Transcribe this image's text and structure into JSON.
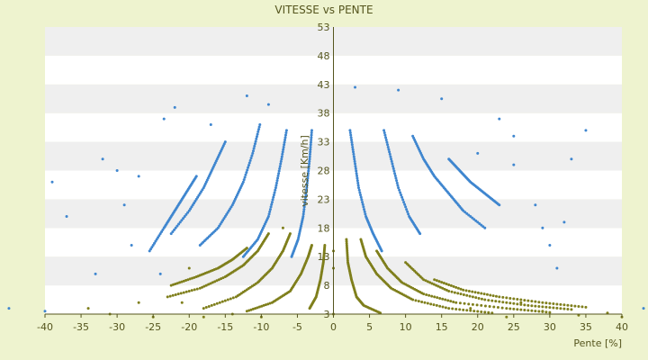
{
  "chart_data": {
    "type": "scatter",
    "title": "VITESSE vs PENTE",
    "xlabel": "Pente [%]",
    "ylabel": "vitesse [Km/h]",
    "xlim": [
      -40,
      40
    ],
    "ylim": [
      3,
      53
    ],
    "x_ticks": [
      "-40",
      "-35",
      "-30",
      "-25",
      "-20",
      "-15",
      "-10",
      "-5",
      "0",
      "5",
      "10",
      "15",
      "20",
      "25",
      "30",
      "35",
      "40"
    ],
    "y_ticks": [
      "53",
      "48",
      "43",
      "38",
      "33",
      "28",
      "23",
      "18",
      "13",
      "8",
      "3"
    ],
    "grid": "horizontal bands",
    "legend": "none",
    "colors": {
      "blue_series": "#3f86cf",
      "olive_series": "#7f7f1c",
      "background": "#eef3cf",
      "band": "#efefef"
    },
    "series": [
      {
        "color": "blue",
        "curves": [
          {
            "x": [
              -3,
              -3.3,
              -3.7,
              -4.2,
              -4.9,
              -5.8
            ],
            "y": [
              35,
              30,
              25,
              20,
              16,
              13
            ]
          },
          {
            "x": [
              -6.5,
              -7.2,
              -8,
              -9,
              -10.5,
              -12.5
            ],
            "y": [
              35,
              30,
              25,
              20,
              16,
              13
            ]
          },
          {
            "x": [
              -10.2,
              -11.2,
              -12.5,
              -14,
              -16,
              -18.5
            ],
            "y": [
              36,
              31,
              26,
              22,
              18,
              15
            ]
          },
          {
            "x": [
              -15,
              -16.5,
              -18,
              -20,
              -22.5
            ],
            "y": [
              33,
              29,
              25,
              21,
              17
            ]
          },
          {
            "x": [
              -19,
              -20.5,
              -22,
              -23.5,
              -25.5
            ],
            "y": [
              27,
              24,
              21,
              18,
              14
            ]
          },
          {
            "x": [
              2.3,
              2.9,
              3.5,
              4.5,
              5.5,
              6.7
            ],
            "y": [
              35,
              30,
              25,
              20,
              17,
              14
            ]
          },
          {
            "x": [
              7,
              8,
              9,
              10.5,
              12
            ],
            "y": [
              35,
              30,
              25,
              20,
              17
            ]
          },
          {
            "x": [
              11,
              12.5,
              14,
              16,
              18,
              21
            ],
            "y": [
              34,
              30,
              27,
              24,
              21,
              18
            ]
          },
          {
            "x": [
              16,
              17.5,
              19,
              21,
              23
            ],
            "y": [
              30,
              28,
              26,
              24,
              22
            ]
          }
        ],
        "scatter": [
          {
            "x": -37,
            "y": 20
          },
          {
            "x": -39,
            "y": 26
          },
          {
            "x": -32,
            "y": 30
          },
          {
            "x": -30,
            "y": 28
          },
          {
            "x": -29,
            "y": 22
          },
          {
            "x": -27,
            "y": 27
          },
          {
            "x": -23.5,
            "y": 37
          },
          {
            "x": -22,
            "y": 39
          },
          {
            "x": -17,
            "y": 36
          },
          {
            "x": -12,
            "y": 41
          },
          {
            "x": -9,
            "y": 39.5
          },
          {
            "x": -28,
            "y": 15
          },
          {
            "x": -24,
            "y": 10
          },
          {
            "x": -33,
            "y": 10
          },
          {
            "x": -40,
            "y": 3.5
          },
          {
            "x": -45,
            "y": 4
          },
          {
            "x": 3,
            "y": 42.5
          },
          {
            "x": 9,
            "y": 42
          },
          {
            "x": 15,
            "y": 40.5
          },
          {
            "x": 20,
            "y": 31
          },
          {
            "x": 23,
            "y": 37
          },
          {
            "x": 25,
            "y": 34
          },
          {
            "x": 25,
            "y": 29
          },
          {
            "x": 28,
            "y": 22
          },
          {
            "x": 29,
            "y": 18
          },
          {
            "x": 32,
            "y": 19
          },
          {
            "x": 33,
            "y": 30
          },
          {
            "x": 35,
            "y": 35
          },
          {
            "x": 30,
            "y": 15
          },
          {
            "x": 31,
            "y": 11
          },
          {
            "x": 43,
            "y": 4
          }
        ]
      },
      {
        "color": "olive",
        "curves": [
          {
            "x": [
              -1.2,
              -1.4,
              -1.8,
              -2.4,
              -3.3
            ],
            "y": [
              15,
              12,
              9,
              6,
              4
            ]
          },
          {
            "x": [
              -3,
              -3.5,
              -4.5,
              -6,
              -8.5,
              -12
            ],
            "y": [
              15,
              13,
              10,
              7,
              5,
              3.5
            ]
          },
          {
            "x": [
              -6,
              -7,
              -8.5,
              -10.5,
              -13.5,
              -18
            ],
            "y": [
              17,
              14,
              11,
              8.5,
              6,
              4
            ]
          },
          {
            "x": [
              -9,
              -10.5,
              -12.5,
              -15,
              -18.5,
              -23
            ],
            "y": [
              17,
              14,
              11.5,
              9.5,
              7.5,
              6
            ]
          },
          {
            "x": [
              -12,
              -14,
              -16,
              -19,
              -22.5
            ],
            "y": [
              14.5,
              12.5,
              11,
              9.5,
              8
            ]
          },
          {
            "x": [
              1.8,
              2,
              2.5,
              3.2,
              4.2,
              6.5
            ],
            "y": [
              16,
              12,
              9,
              6,
              4.5,
              3.2
            ]
          },
          {
            "x": [
              3.8,
              4.5,
              6,
              8,
              11,
              16,
              22
            ],
            "y": [
              16,
              13,
              10,
              7.5,
              5.5,
              4,
              3.2
            ]
          },
          {
            "x": [
              6,
              7.5,
              9.5,
              12.5,
              17,
              24,
              30
            ],
            "y": [
              14,
              11,
              8.5,
              6.5,
              5,
              4,
              3.3
            ]
          },
          {
            "x": [
              10,
              12.5,
              16,
              21,
              27,
              33
            ],
            "y": [
              12,
              9,
              7,
              5.5,
              4.5,
              3.8
            ]
          },
          {
            "x": [
              14,
              18,
              23,
              29,
              35
            ],
            "y": [
              9,
              7.2,
              6,
              5,
              4.2
            ]
          }
        ],
        "scatter": [
          {
            "x": -34,
            "y": 4
          },
          {
            "x": -31,
            "y": 3
          },
          {
            "x": -27,
            "y": 5
          },
          {
            "x": -25,
            "y": 2.5
          },
          {
            "x": -21,
            "y": 5
          },
          {
            "x": -18,
            "y": 2.5
          },
          {
            "x": -14,
            "y": 3
          },
          {
            "x": -10,
            "y": 2.5
          },
          {
            "x": -20,
            "y": 11
          },
          {
            "x": -7,
            "y": 18
          },
          {
            "x": 24,
            "y": 2.5
          },
          {
            "x": 29,
            "y": 3.5
          },
          {
            "x": 34,
            "y": 2.8
          },
          {
            "x": 38,
            "y": 3.2
          },
          {
            "x": 40,
            "y": 2.5
          },
          {
            "x": 19,
            "y": 4
          },
          {
            "x": 26,
            "y": 5
          },
          {
            "x": 0,
            "y": 3
          },
          {
            "x": 0,
            "y": 11
          },
          {
            "x": 0,
            "y": 14
          }
        ]
      }
    ]
  }
}
